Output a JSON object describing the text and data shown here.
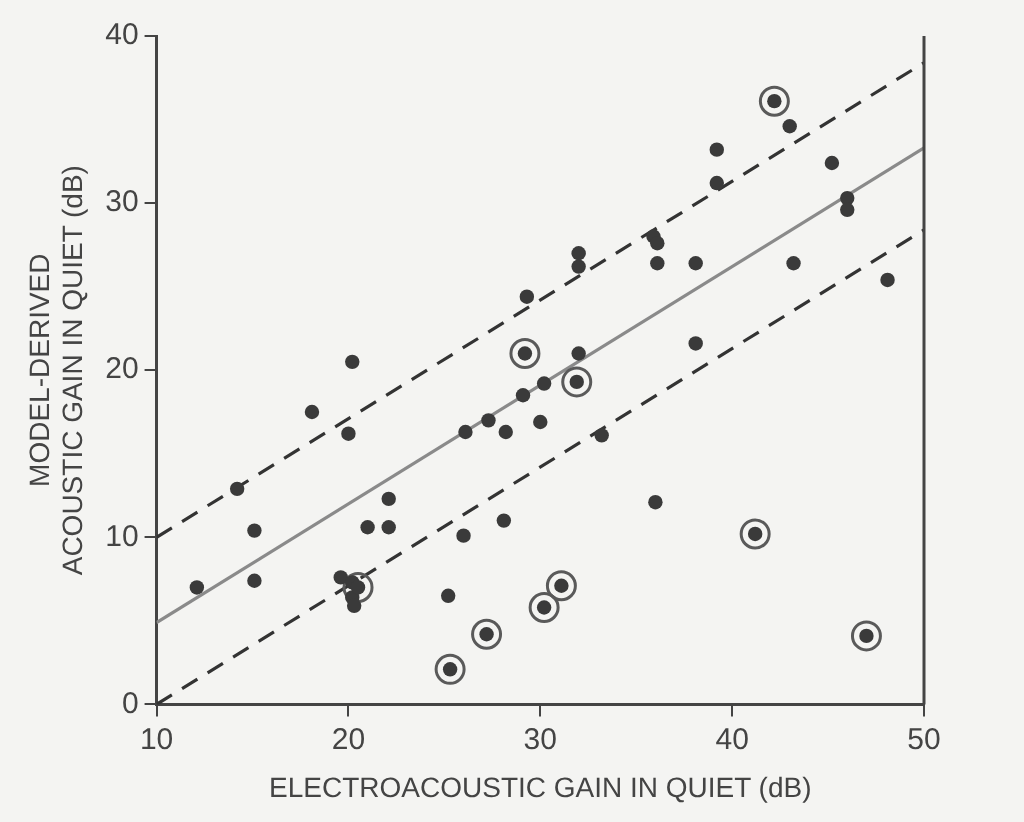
{
  "chart_data": {
    "type": "scatter",
    "xlabel": "ELECTROACOUSTIC GAIN IN QUIET (dB)",
    "ylabel": "MODEL-DERIVED\nACOUSTIC GAIN IN QUIET (dB)",
    "xlim": [
      10,
      50
    ],
    "ylim": [
      0,
      40
    ],
    "xticks": [
      10,
      20,
      30,
      40,
      50
    ],
    "yticks": [
      0,
      10,
      20,
      30,
      40
    ],
    "grid": false,
    "legend": false,
    "marker": "circle",
    "series": [
      {
        "type": "scatter",
        "color": "#3a3a3a",
        "x": [
          29.3,
          20.2,
          18.1,
          20.0,
          14.2,
          15.1,
          12.1,
          15.1,
          22.1,
          21.0,
          22.1,
          19.6,
          20.2,
          20.2,
          20.3,
          26.1,
          27.3,
          28.2,
          29.1,
          30.2,
          30.0,
          28.1,
          26.0,
          25.2,
          43.0,
          39.2,
          39.2,
          45.2,
          46.0,
          46.0,
          48.1,
          43.2,
          38.1,
          36.1,
          35.9,
          36.1,
          32.0,
          32.0,
          32.0,
          33.2,
          38.1,
          36.0
        ],
        "values": [
          24.4,
          20.5,
          17.5,
          16.2,
          12.9,
          10.4,
          7.0,
          7.4,
          12.3,
          10.6,
          10.6,
          7.6,
          7.3,
          6.4,
          5.9,
          16.3,
          17.0,
          16.3,
          18.5,
          19.2,
          16.9,
          11.0,
          10.1,
          6.5,
          34.6,
          33.2,
          31.2,
          32.4,
          30.3,
          29.6,
          25.4,
          26.4,
          26.4,
          26.4,
          28.0,
          27.6,
          27.0,
          26.2,
          21.0,
          16.1,
          21.6,
          12.1
        ]
      },
      {
        "type": "scatter",
        "color": "#3a3a3a",
        "x": [
          29.2,
          20.5,
          25.3,
          27.2,
          30.2,
          31.1,
          31.9,
          42.2,
          41.2,
          47.0
        ],
        "values": [
          21.0,
          7.0,
          2.1,
          4.2,
          5.8,
          7.1,
          19.3,
          36.1,
          10.2,
          4.1
        ]
      },
      {
        "type": "line",
        "color": "#8a8a8a",
        "x": [
          10,
          50
        ],
        "values": [
          4.9,
          33.3
        ],
        "line_style": "solid",
        "marker": "none"
      },
      {
        "type": "line",
        "color": "#333333",
        "x": [
          10,
          50
        ],
        "values": [
          10.0,
          38.4
        ],
        "line_style": "dashed",
        "marker": "none"
      },
      {
        "type": "line",
        "color": "#333333",
        "x": [
          10,
          50
        ],
        "values": [
          0.0,
          28.4
        ],
        "line_style": "dashed",
        "marker": "none"
      }
    ]
  }
}
